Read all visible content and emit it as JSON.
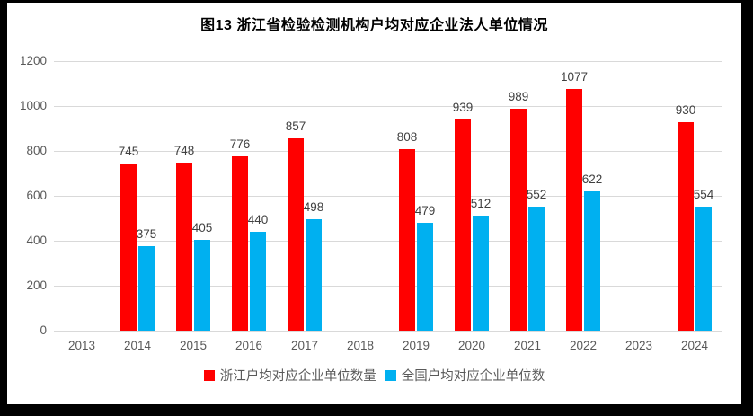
{
  "title": "图13 浙江省检验检测机构户均对应企业法人单位情况",
  "chart_data": {
    "type": "bar",
    "title": "图13 浙江省检验检测机构户均对应企业法人单位情况",
    "categories": [
      "2013",
      "2014",
      "2015",
      "2016",
      "2017",
      "2018",
      "2019",
      "2020",
      "2021",
      "2022",
      "2023",
      "2024"
    ],
    "series": [
      {
        "key": "zhejiang",
        "name": "浙江户均对应企业单位数量",
        "color": "#ff0000",
        "values": [
          null,
          745,
          748,
          776,
          857,
          null,
          808,
          939,
          989,
          1077,
          null,
          930
        ]
      },
      {
        "key": "national",
        "name": "全国户均对应企业单位数",
        "color": "#00b0f0",
        "values": [
          null,
          375,
          405,
          440,
          498,
          null,
          479,
          512,
          552,
          622,
          null,
          554
        ]
      }
    ],
    "ylim": [
      0,
      1200
    ],
    "yticks": [
      0,
      200,
      400,
      600,
      800,
      1000,
      1200
    ],
    "grid": true,
    "legend_position": "bottom",
    "gridline_color": "#d9d9d9",
    "tick_label_color": "#595959",
    "data_label_color": "#404040",
    "frame_color": "#000000",
    "background_color": "#ffffff"
  }
}
